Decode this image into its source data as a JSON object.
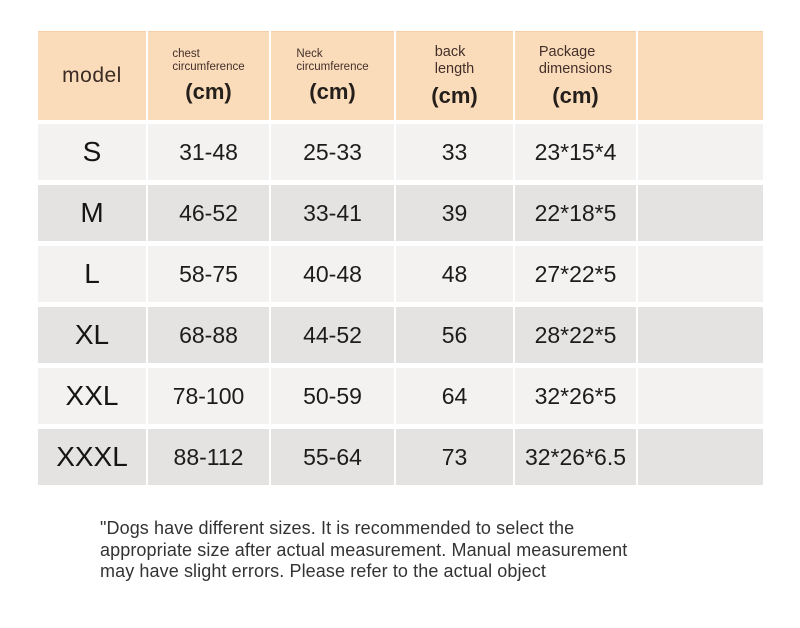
{
  "colors": {
    "page_background": "#ffffff",
    "header_background": "#fadcba",
    "row_light_background": "#f3f2f1",
    "row_dark_background": "#e5e3e1",
    "text_dark": "#1c1c1c",
    "note_text": "#333333"
  },
  "table": {
    "headers": [
      {
        "line1": "model",
        "line2": "",
        "unit": ""
      },
      {
        "line1": "chest",
        "line2": "circumference",
        "unit": "(cm)"
      },
      {
        "line1": "Neck",
        "line2": "circumference",
        "unit": "(cm)"
      },
      {
        "line1": "back",
        "line2": "length",
        "unit": "(cm)"
      },
      {
        "line1": "Package",
        "line2": "dimensions",
        "unit": "(cm)"
      },
      {
        "line1": "",
        "line2": "",
        "unit": ""
      }
    ],
    "rows": [
      {
        "model": "S",
        "chest": "31-48",
        "neck": "25-33",
        "back": "33",
        "package": "23*15*4",
        "spare": ""
      },
      {
        "model": "M",
        "chest": "46-52",
        "neck": "33-41",
        "back": "39",
        "package": "22*18*5",
        "spare": ""
      },
      {
        "model": "L",
        "chest": "58-75",
        "neck": "40-48",
        "back": "48",
        "package": "27*22*5",
        "spare": ""
      },
      {
        "model": "XL",
        "chest": "68-88",
        "neck": "44-52",
        "back": "56",
        "package": "28*22*5",
        "spare": ""
      },
      {
        "model": "XXL",
        "chest": "78-100",
        "neck": "50-59",
        "back": "64",
        "package": "32*26*5",
        "spare": ""
      },
      {
        "model": "XXXL",
        "chest": "88-112",
        "neck": "55-64",
        "back": "73",
        "package": "32*26*6.5",
        "spare": ""
      }
    ]
  },
  "note": {
    "line1": "\"Dogs have different sizes. It is recommended to select the",
    "line2": "appropriate size after actual measurement. Manual measurement",
    "line3": "may have slight errors. Please refer to the actual object"
  }
}
